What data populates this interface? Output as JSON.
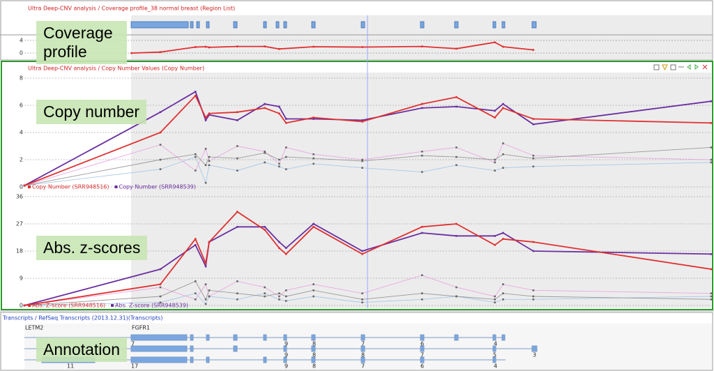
{
  "chart_data": [
    {
      "type": "line",
      "title": "Ultra Deep-CNV analysis / Coverage profile_38 normal breast (Region List)",
      "x": [
        15.6,
        19.8,
        24.9,
        26.4,
        26.9,
        31.0,
        35.0,
        37.1,
        42.1,
        49.2,
        57.9,
        62.9,
        68.5,
        69.7,
        74.1
      ],
      "values": [
        0,
        0.3,
        1.9,
        2.0,
        1.8,
        2.1,
        2.1,
        1.3,
        2.0,
        1.9,
        2.1,
        1.4,
        3.4,
        2.0,
        1.0
      ],
      "color": "#e03030",
      "xlim": [
        0,
        100
      ],
      "ylim": [
        -1.3,
        6.2
      ],
      "yticks": [
        0,
        4
      ]
    },
    {
      "type": "line",
      "title": "Ultra Deep-CNV analysis / Copy Number Values (Copy Number)",
      "x": [
        0,
        19.8,
        24.9,
        26.4,
        26.9,
        31.0,
        35.0,
        37.1,
        38.1,
        42.1,
        49.2,
        57.9,
        62.9,
        68.5,
        69.7,
        74.1,
        100
      ],
      "series": [
        {
          "name": "Copy Number (SRR948516)",
          "color": "#e03030",
          "values": [
            0.1,
            4.0,
            6.7,
            5.1,
            5.4,
            5.5,
            5.8,
            5.4,
            4.7,
            5.1,
            4.8,
            6.1,
            6.6,
            5.1,
            5.8,
            5.0,
            4.7
          ]
        },
        {
          "name": "Copy Number (SRR948539)",
          "color": "#6a2fa0",
          "values": [
            0.1,
            5.5,
            7.0,
            4.9,
            5.3,
            4.9,
            6.1,
            5.9,
            5.0,
            5.0,
            4.9,
            5.8,
            5.9,
            5.6,
            6.1,
            4.6,
            6.3
          ]
        },
        {
          "color": "#999999",
          "values": [
            0.1,
            2.0,
            2.4,
            1.6,
            2.2,
            2.1,
            2.5,
            2.0,
            2.2,
            2.1,
            1.9,
            2.3,
            2.2,
            2.0,
            2.4,
            2.1,
            2.9
          ]
        },
        {
          "color": "#e8a8e0",
          "values": [
            0.1,
            3.1,
            1.2,
            2.8,
            1.9,
            3.0,
            2.6,
            1.7,
            2.9,
            2.4,
            2.0,
            2.6,
            2.9,
            1.8,
            3.2,
            2.3,
            2.0
          ]
        },
        {
          "color": "#a8c8e8",
          "values": [
            0.1,
            1.3,
            2.2,
            0.3,
            1.6,
            1.2,
            1.8,
            1.5,
            1.3,
            1.7,
            1.4,
            1.1,
            1.6,
            1.2,
            1.4,
            1.5,
            1.8
          ]
        }
      ],
      "xlim": [
        0,
        100
      ],
      "ylim": [
        0,
        8
      ],
      "yticks": [
        0,
        2,
        4,
        6,
        8
      ]
    },
    {
      "type": "line",
      "x": [
        0,
        19.8,
        24.9,
        26.4,
        26.9,
        31.0,
        35.0,
        37.1,
        38.1,
        42.1,
        49.2,
        57.9,
        62.9,
        68.5,
        69.7,
        74.1,
        100
      ],
      "series": [
        {
          "name": "Abs. Z-score (SRR948516)",
          "color": "#e03030",
          "values": [
            0,
            7,
            22,
            14,
            21,
            31,
            25,
            19,
            17,
            26,
            17,
            26,
            27,
            20,
            22,
            21,
            12
          ]
        },
        {
          "name": "Abs. Z-score (SRR948539)",
          "color": "#6a2fa0",
          "values": [
            0,
            12,
            20,
            13,
            21,
            26,
            26,
            21,
            19,
            27,
            18,
            24,
            23,
            23,
            24,
            18,
            17
          ]
        },
        {
          "color": "#999999",
          "values": [
            0,
            3,
            8,
            2,
            5,
            4,
            3,
            4,
            3,
            5,
            2,
            4,
            3,
            2,
            4,
            3,
            2
          ]
        },
        {
          "color": "#e8a8e0",
          "values": [
            0,
            6,
            2,
            7,
            3,
            8,
            6,
            3,
            5,
            7,
            4,
            10,
            6,
            3,
            7,
            5,
            4
          ]
        },
        {
          "color": "#a8c8e8",
          "values": [
            0,
            1,
            4,
            0.5,
            3,
            2,
            4,
            2,
            1.5,
            3,
            1,
            2,
            3,
            1,
            2,
            2,
            3
          ]
        }
      ],
      "xlim": [
        0,
        100
      ],
      "ylim": [
        0,
        36
      ],
      "yticks": [
        0,
        9,
        18,
        27,
        36
      ]
    }
  ],
  "labels": [
    "Coverage profile",
    "Copy number",
    "Abs. z-scores",
    "Annotation"
  ],
  "annotation": {
    "title": "Transcripts / RefSeq Transcripts (2013.12.31)(Transcripts)",
    "genes": [
      "LETM2",
      "FGFR1"
    ],
    "exon_numbers": [
      [
        "7",
        "9",
        "8",
        "7",
        "6",
        "4"
      ],
      [
        "9",
        "8",
        "8",
        "7",
        "5",
        "3"
      ],
      [
        "11",
        "17",
        "9",
        "8",
        "7",
        "6",
        "4"
      ]
    ]
  }
}
